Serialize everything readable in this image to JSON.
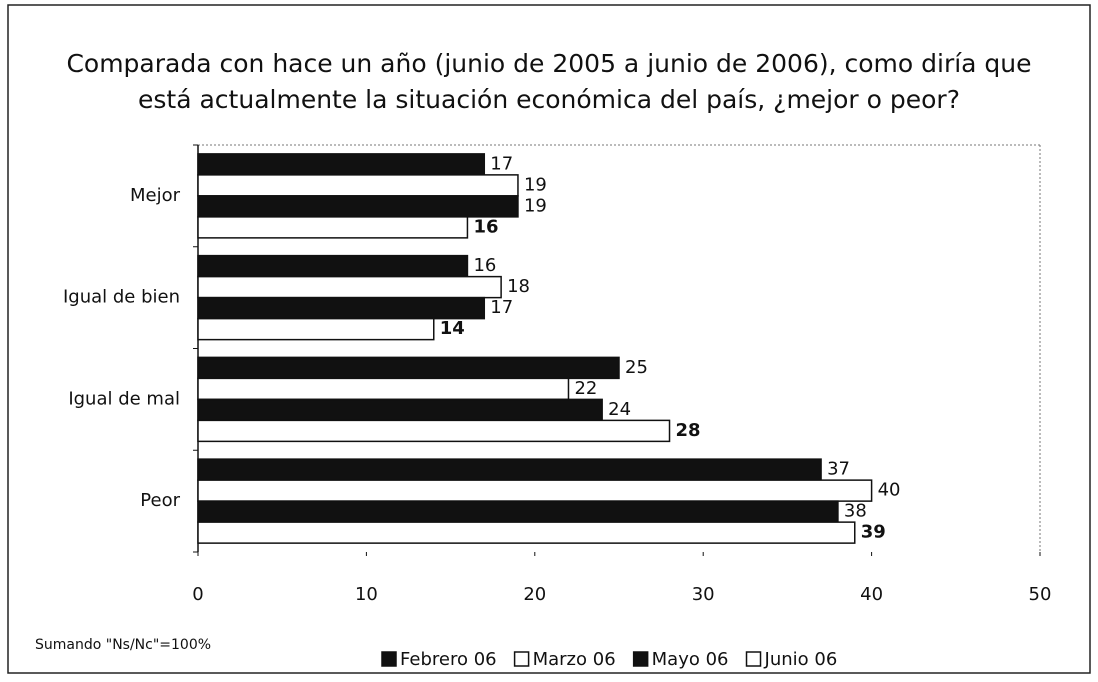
{
  "chart_data": {
    "type": "barh",
    "title": "Comparada con hace un año (junio de 2005 a junio de 2006), como diría que",
    "subtitle": "está actualmente la situación económica del país, ¿mejor o peor?",
    "note": "Sumando \"Ns/Nc\"=100%",
    "categories": [
      "Mejor",
      "Igual de bien",
      "Igual de mal",
      "Peor"
    ],
    "series": [
      {
        "name": "Febrero 06",
        "color": "#111111",
        "values": [
          17,
          16,
          25,
          37
        ]
      },
      {
        "name": "Marzo 06",
        "color": "#ffffff",
        "values": [
          19,
          18,
          22,
          40
        ]
      },
      {
        "name": "Mayo 06",
        "color": "#111111",
        "values": [
          19,
          17,
          24,
          38
        ]
      },
      {
        "name": "Junio 06",
        "color": "#ffffff",
        "values": [
          16,
          14,
          28,
          39
        ]
      }
    ],
    "xlim": [
      0,
      50
    ],
    "xticks": [
      0,
      10,
      20,
      30,
      40,
      50
    ],
    "legend": "bottom"
  }
}
